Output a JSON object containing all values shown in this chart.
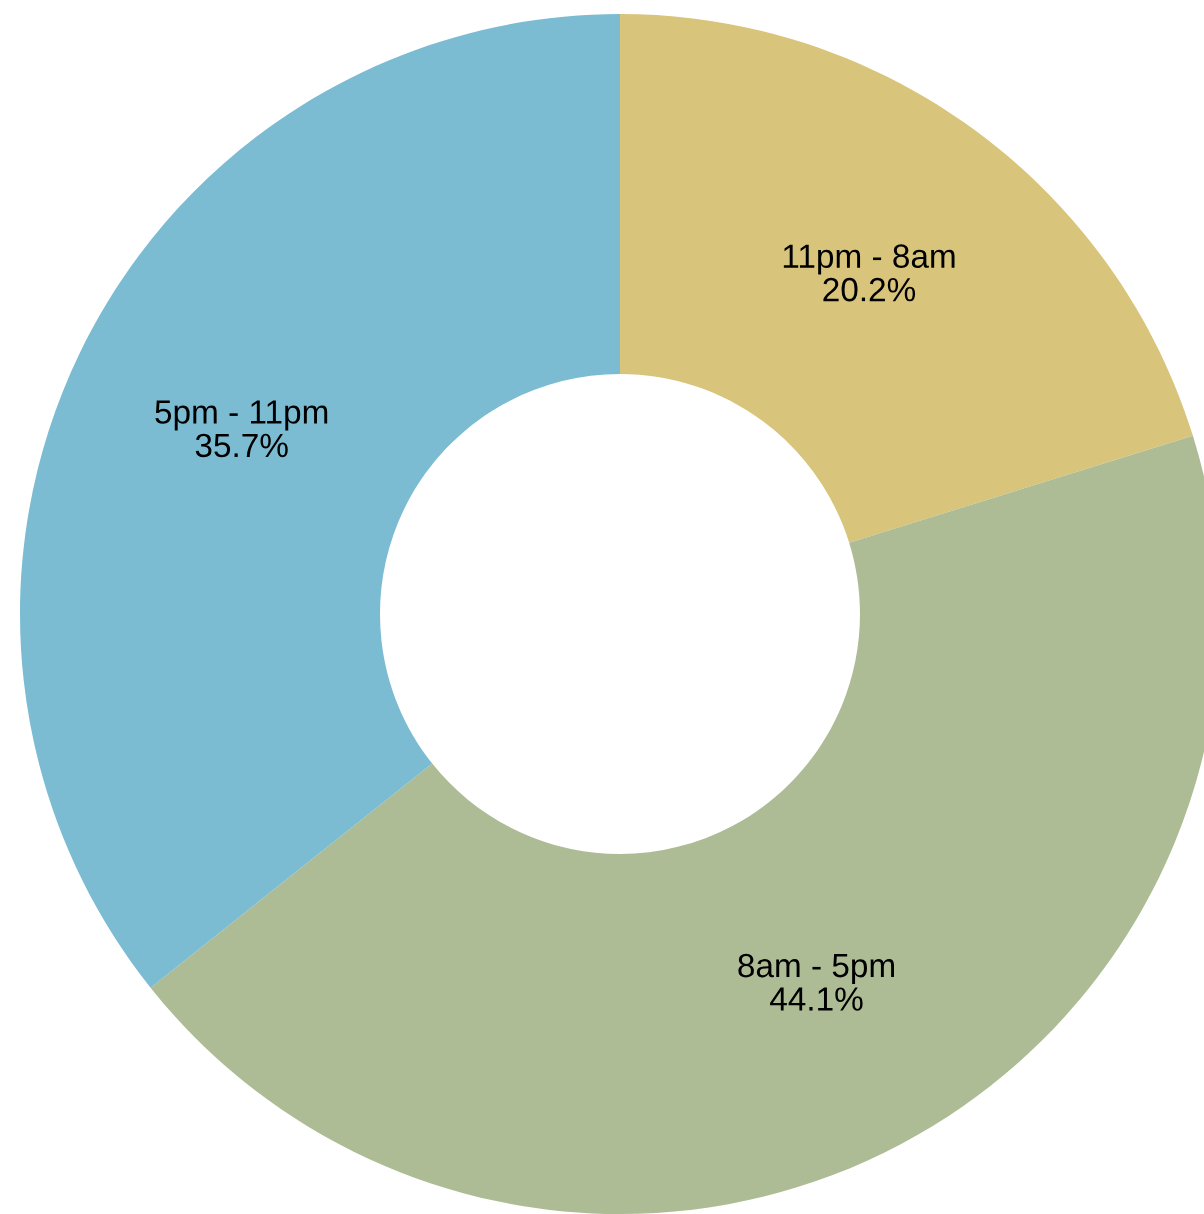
{
  "chart_data": {
    "type": "donut",
    "categories": [
      "11pm - 8am",
      "8am - 5pm",
      "5pm - 11pm"
    ],
    "values": [
      20.2,
      44.1,
      35.7
    ],
    "value_labels": [
      "20.2%",
      "44.1%",
      "35.7%"
    ],
    "colors": [
      "#d8c47a",
      "#adbc94",
      "#7bbcd3"
    ],
    "legend": false
  }
}
